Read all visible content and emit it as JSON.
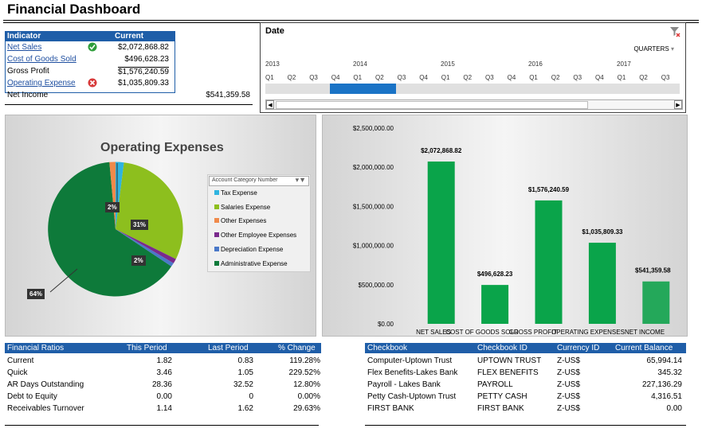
{
  "title": "Financial Dashboard",
  "indicator_table": {
    "headers": [
      "Indicator",
      "Current"
    ],
    "rows": [
      {
        "label": "Net Sales",
        "value": "$2,072,868.82",
        "link": true,
        "status": "check"
      },
      {
        "label": "Cost of Goods Sold",
        "value": "$496,628.23",
        "link": true,
        "status": ""
      },
      {
        "label": "Gross Profit",
        "value": "$1,576,240.59",
        "link": false,
        "status": ""
      },
      {
        "label": "Operating Expense",
        "value": "$1,035,809.33",
        "link": true,
        "status": "x"
      }
    ],
    "net_income_label": "Net Income",
    "net_income_value": "$541,359.58"
  },
  "date_slicer": {
    "label": "Date",
    "level": "QUARTERS",
    "years": [
      "2013",
      "2014",
      "2015",
      "2016",
      "2017"
    ],
    "quarters": [
      "Q1",
      "Q2",
      "Q3",
      "Q4",
      "Q1",
      "Q2",
      "Q3",
      "Q4",
      "Q1",
      "Q2",
      "Q3",
      "Q4",
      "Q1",
      "Q2",
      "Q3",
      "Q4",
      "Q1",
      "Q2",
      "Q3"
    ]
  },
  "pie_chart": {
    "title": "Operating Expenses",
    "legend_title": "Account Category Number",
    "legend": [
      {
        "name": "Tax Expense",
        "color": "#2fb4e0"
      },
      {
        "name": "Salaries Expense",
        "color": "#8dbf1e"
      },
      {
        "name": "Other Expenses",
        "color": "#f08a4b"
      },
      {
        "name": "Other Employee Expenses",
        "color": "#7a2a8c"
      },
      {
        "name": "Depreciation Expense",
        "color": "#4a78c8"
      },
      {
        "name": "Administrative Expense",
        "color": "#0e7a3a"
      }
    ],
    "labels": [
      "2%",
      "31%",
      "2%",
      "64%"
    ]
  },
  "chart_data": {
    "type": "bar",
    "categories": [
      "NET SALES",
      "COST OF GOODS SOLD",
      "GROSS PROFIT",
      "OPERATING EXPENSES",
      "NET INCOME"
    ],
    "values": [
      2072868.82,
      496628.23,
      1576240.59,
      1035809.33,
      541359.58
    ],
    "data_labels": [
      "$2,072,868.82",
      "$496,628.23",
      "$1,576,240.59",
      "$1,035,809.33",
      "$541,359.58"
    ],
    "y_ticks": [
      "$0.00",
      "$500,000.00",
      "$1,000,000.00",
      "$1,500,000.00",
      "$2,000,000.00",
      "$2,500,000.00"
    ],
    "ylim": [
      0,
      2500000
    ],
    "color": "#0aa44a",
    "last_color": "#24a85a"
  },
  "ratios": {
    "headers": [
      "Financial Ratios",
      "This Period",
      "Last Period",
      "% Change"
    ],
    "rows": [
      [
        "Current",
        "1.82",
        "0.83",
        "119.28%"
      ],
      [
        "Quick",
        "3.46",
        "1.05",
        "229.52%"
      ],
      [
        "AR Days Outstanding",
        "28.36",
        "32.52",
        "12.80%"
      ],
      [
        "Debt to Equity",
        "0.00",
        "0",
        "0.00%"
      ],
      [
        "Receivables Turnover",
        "1.14",
        "1.62",
        "29.63%"
      ]
    ]
  },
  "checkbooks": {
    "headers": [
      "Checkbook",
      "Checkbook ID",
      "Currency ID",
      "Current Balance"
    ],
    "rows": [
      [
        "Computer-Uptown Trust",
        "UPTOWN TRUST",
        "Z-US$",
        "65,994.14"
      ],
      [
        "Flex Benefits-Lakes Bank",
        "FLEX BENEFITS",
        "Z-US$",
        "345.32"
      ],
      [
        "Payroll - Lakes Bank",
        "PAYROLL",
        "Z-US$",
        "227,136.29"
      ],
      [
        "Petty Cash-Uptown Trust",
        "PETTY CASH",
        "Z-US$",
        "4,316.51"
      ],
      [
        "FIRST BANK",
        "FIRST BANK",
        "Z-US$",
        "0.00"
      ]
    ]
  }
}
